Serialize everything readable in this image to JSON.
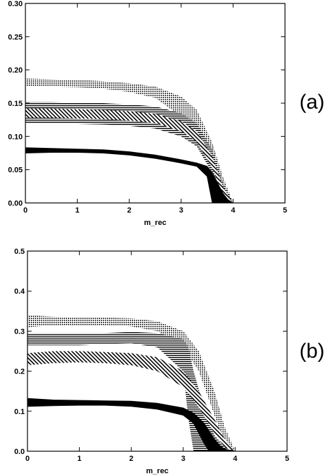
{
  "chart_data": [
    {
      "type": "area",
      "panel_label": "(a)",
      "xlabel": "m_rec",
      "ylabel": "",
      "xlim": [
        0,
        5
      ],
      "ylim": [
        0,
        0.3
      ],
      "xticks": [
        "0",
        "1",
        "2",
        "3",
        "4",
        "5"
      ],
      "yticks": [
        "0.00",
        "0.05",
        "0.10",
        "0.15",
        "0.20",
        "0.25",
        "0.30"
      ],
      "grid": false,
      "series": [
        {
          "pattern": "dotted",
          "x": [
            0,
            0.5,
            1,
            1.5,
            2,
            2.5,
            3,
            3.3,
            3.6,
            3.8,
            4.0
          ],
          "upper": [
            0.187,
            0.186,
            0.185,
            0.183,
            0.18,
            0.175,
            0.16,
            0.14,
            0.09,
            0.04,
            0.0
          ],
          "lower": [
            0.175,
            0.175,
            0.174,
            0.172,
            0.167,
            0.158,
            0.13,
            0.1,
            0.04,
            0.005,
            0.0
          ]
        },
        {
          "pattern": "horizontal-lines",
          "x": [
            0,
            0.5,
            1,
            1.5,
            2,
            2.5,
            3,
            3.3,
            3.6,
            3.8,
            4.0
          ],
          "upper": [
            0.152,
            0.152,
            0.151,
            0.15,
            0.148,
            0.145,
            0.135,
            0.12,
            0.08,
            0.03,
            0.0
          ],
          "lower": [
            0.12,
            0.12,
            0.119,
            0.118,
            0.116,
            0.112,
            0.1,
            0.085,
            0.045,
            0.008,
            0.0
          ]
        },
        {
          "pattern": "diagonal-hatch",
          "x": [
            0,
            0.5,
            1,
            1.5,
            2,
            2.5,
            3,
            3.3,
            3.6,
            3.8,
            4.0
          ],
          "upper": [
            0.142,
            0.142,
            0.141,
            0.14,
            0.138,
            0.134,
            0.123,
            0.108,
            0.07,
            0.025,
            0.0
          ],
          "lower": [
            0.128,
            0.128,
            0.127,
            0.126,
            0.124,
            0.12,
            0.108,
            0.092,
            0.052,
            0.01,
            0.0
          ]
        },
        {
          "pattern": "solid",
          "x": [
            0,
            0.5,
            1,
            1.5,
            2,
            2.5,
            3,
            3.3,
            3.5,
            3.6,
            3.7,
            3.8,
            3.9,
            4.0
          ],
          "upper": [
            0.083,
            0.082,
            0.081,
            0.08,
            0.077,
            0.072,
            0.065,
            0.06,
            0.055,
            0.045,
            0.03,
            0.015,
            0.005,
            0.0
          ],
          "lower": [
            0.075,
            0.076,
            0.076,
            0.075,
            0.072,
            0.067,
            0.06,
            0.055,
            0.04,
            0.0,
            0.0,
            0.0,
            0.0,
            0.0
          ]
        }
      ]
    },
    {
      "type": "area",
      "panel_label": "(b)",
      "xlabel": "m_rec",
      "ylabel": "",
      "xlim": [
        0,
        5
      ],
      "ylim": [
        0,
        0.5
      ],
      "xticks": [
        "0",
        "1",
        "2",
        "3",
        "4",
        "5"
      ],
      "yticks": [
        "0.0",
        "0.1",
        "0.2",
        "0.3",
        "0.4",
        "0.5"
      ],
      "grid": false,
      "series": [
        {
          "pattern": "dotted",
          "x": [
            0,
            0.5,
            1,
            1.5,
            2,
            2.5,
            3,
            3.3,
            3.6,
            3.8,
            4.0
          ],
          "upper": [
            0.34,
            0.336,
            0.335,
            0.334,
            0.332,
            0.325,
            0.3,
            0.25,
            0.15,
            0.06,
            0.0
          ],
          "lower": [
            0.31,
            0.315,
            0.315,
            0.315,
            0.312,
            0.3,
            0.26,
            0.2,
            0.09,
            0.02,
            0.0
          ]
        },
        {
          "pattern": "horizontal-lines",
          "x": [
            0,
            0.5,
            1,
            1.5,
            2,
            2.5,
            3,
            3.1,
            3.2,
            3.4,
            3.6,
            3.8,
            4.0
          ],
          "upper": [
            0.295,
            0.295,
            0.295,
            0.295,
            0.298,
            0.295,
            0.28,
            0.26,
            0.2,
            0.11,
            0.04,
            0.01,
            0.0
          ],
          "lower": [
            0.265,
            0.265,
            0.265,
            0.268,
            0.27,
            0.26,
            0.2,
            0.08,
            0.0,
            0.0,
            0.0,
            0.0,
            0.0
          ]
        },
        {
          "pattern": "diagonal-hatch",
          "x": [
            0,
            0.5,
            1,
            1.5,
            2,
            2.5,
            3,
            3.3,
            3.6,
            3.8,
            4.0
          ],
          "upper": [
            0.245,
            0.25,
            0.25,
            0.248,
            0.245,
            0.235,
            0.2,
            0.15,
            0.08,
            0.03,
            0.0
          ],
          "lower": [
            0.215,
            0.22,
            0.222,
            0.22,
            0.215,
            0.2,
            0.16,
            0.11,
            0.045,
            0.01,
            0.0
          ]
        },
        {
          "pattern": "solid",
          "x": [
            0,
            0.5,
            1,
            1.5,
            2,
            2.5,
            3,
            3.2,
            3.4,
            3.5,
            3.6,
            3.7,
            3.8,
            4.0
          ],
          "upper": [
            0.132,
            0.128,
            0.127,
            0.126,
            0.125,
            0.12,
            0.108,
            0.095,
            0.07,
            0.05,
            0.03,
            0.015,
            0.005,
            0.0
          ],
          "lower": [
            0.112,
            0.114,
            0.115,
            0.115,
            0.112,
            0.105,
            0.09,
            0.07,
            0.02,
            0.0,
            0.0,
            0.0,
            0.0,
            0.0
          ]
        }
      ]
    }
  ]
}
